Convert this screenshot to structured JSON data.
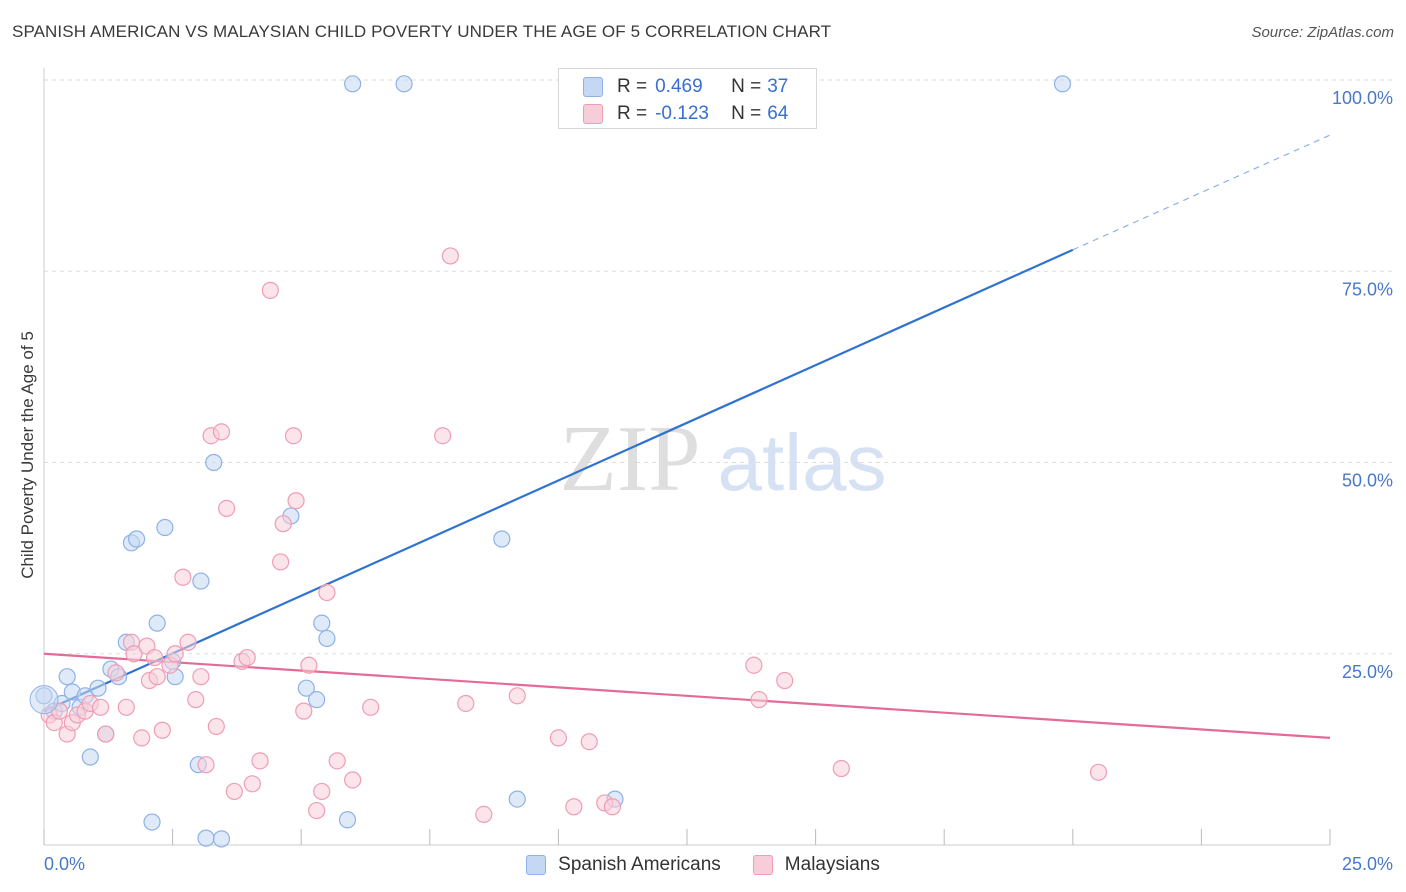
{
  "header": {
    "title": "SPANISH AMERICAN VS MALAYSIAN CHILD POVERTY UNDER THE AGE OF 5 CORRELATION CHART",
    "source": "Source: ZipAtlas.com"
  },
  "watermark": {
    "zip": "ZIP",
    "atlas": "atlas"
  },
  "legend": {
    "rows": [
      {
        "r_label": "R =",
        "r_value": "0.469",
        "n_label": "N =",
        "n_value": "37"
      },
      {
        "r_label": "R =",
        "r_value": "-0.123",
        "n_label": "N =",
        "n_value": "64"
      }
    ]
  },
  "bottom_legend": {
    "items": [
      "Spanish Americans",
      "Malaysians"
    ]
  },
  "colors": {
    "blue_fill": "#c5d8f3",
    "blue_stroke": "#8fb1e6",
    "blue_line": "#2f72d0",
    "pink_fill": "#f7cdd9",
    "pink_stroke": "#ef9db5",
    "pink_line": "#e26b98",
    "tick_text": "#4a78c8",
    "grid": "#dddddd"
  },
  "chart_data": {
    "type": "scatter",
    "title": "SPANISH AMERICAN VS MALAYSIAN CHILD POVERTY UNDER THE AGE OF 5 CORRELATION CHART",
    "ylabel": "Child Poverty Under the Age of 5",
    "xlabel": "",
    "xlim": [
      0,
      25
    ],
    "ylim": [
      0,
      100
    ],
    "x_tick_labels": [
      "0.0%",
      "25.0%"
    ],
    "y_tick_labels": [
      "100.0%",
      "75.0%",
      "50.0%",
      "25.0%"
    ],
    "y_ticks": [
      100,
      75,
      50,
      25
    ],
    "grid": true,
    "legend_position": "top-center",
    "series": [
      {
        "name": "Spanish Americans",
        "color": "#8fb1e6",
        "r": 0.469,
        "n": 37,
        "trend": {
          "x1": 0.0,
          "y1": 17.5,
          "x2": 20.0,
          "y2": 77.8,
          "dashed_to_x": 25.0,
          "dashed_to_y": 92.8
        },
        "points": [
          [
            0.0,
            19.5
          ],
          [
            0.2,
            17.5
          ],
          [
            0.35,
            18.5
          ],
          [
            0.45,
            22
          ],
          [
            0.55,
            20
          ],
          [
            0.7,
            18
          ],
          [
            0.8,
            19.5
          ],
          [
            0.9,
            11.5
          ],
          [
            1.05,
            20.5
          ],
          [
            1.2,
            14.5
          ],
          [
            1.3,
            23
          ],
          [
            1.45,
            22
          ],
          [
            1.7,
            39.5
          ],
          [
            1.8,
            40
          ],
          [
            2.1,
            3
          ],
          [
            2.2,
            29
          ],
          [
            2.35,
            41.5
          ],
          [
            2.5,
            24
          ],
          [
            2.55,
            22
          ],
          [
            3.0,
            10.5
          ],
          [
            3.05,
            34.5
          ],
          [
            3.15,
            0.9
          ],
          [
            3.3,
            50
          ],
          [
            3.45,
            0.8
          ],
          [
            4.8,
            43
          ],
          [
            5.1,
            20.5
          ],
          [
            5.3,
            19
          ],
          [
            5.4,
            29
          ],
          [
            5.5,
            27
          ],
          [
            5.9,
            3.3
          ],
          [
            6.0,
            99.5
          ],
          [
            7.0,
            99.5
          ],
          [
            8.9,
            40
          ],
          [
            9.2,
            6
          ],
          [
            11.1,
            6
          ],
          [
            19.8,
            99.5
          ],
          [
            1.6,
            26.5
          ]
        ]
      },
      {
        "name": "Malaysians",
        "color": "#ef9db5",
        "r": -0.123,
        "n": 64,
        "trend": {
          "x1": 0.0,
          "y1": 25.0,
          "x2": 25.0,
          "y2": 14.0
        },
        "points": [
          [
            0.1,
            17
          ],
          [
            0.2,
            16
          ],
          [
            0.3,
            17.5
          ],
          [
            0.45,
            14.5
          ],
          [
            0.55,
            16
          ],
          [
            0.65,
            17
          ],
          [
            0.8,
            17.5
          ],
          [
            0.9,
            18.5
          ],
          [
            1.1,
            18
          ],
          [
            1.2,
            14.5
          ],
          [
            1.4,
            22.5
          ],
          [
            1.6,
            18
          ],
          [
            1.7,
            26.5
          ],
          [
            1.75,
            25
          ],
          [
            1.9,
            14
          ],
          [
            2.0,
            26
          ],
          [
            2.05,
            21.5
          ],
          [
            2.15,
            24.5
          ],
          [
            2.2,
            22
          ],
          [
            2.3,
            15
          ],
          [
            2.45,
            23.5
          ],
          [
            2.55,
            25
          ],
          [
            2.7,
            35
          ],
          [
            2.8,
            26.5
          ],
          [
            2.95,
            19
          ],
          [
            3.05,
            22
          ],
          [
            3.15,
            10.5
          ],
          [
            3.25,
            53.5
          ],
          [
            3.35,
            15.5
          ],
          [
            3.45,
            54
          ],
          [
            3.55,
            44
          ],
          [
            3.7,
            7
          ],
          [
            3.85,
            24
          ],
          [
            3.95,
            24.5
          ],
          [
            4.05,
            8
          ],
          [
            4.2,
            11
          ],
          [
            4.4,
            72.5
          ],
          [
            4.6,
            37
          ],
          [
            4.65,
            42
          ],
          [
            4.85,
            53.5
          ],
          [
            4.9,
            45
          ],
          [
            5.05,
            17.5
          ],
          [
            5.15,
            23.5
          ],
          [
            5.3,
            4.5
          ],
          [
            5.4,
            7
          ],
          [
            5.5,
            33
          ],
          [
            5.7,
            11
          ],
          [
            6.0,
            8.5
          ],
          [
            6.35,
            18
          ],
          [
            7.75,
            53.5
          ],
          [
            7.9,
            77
          ],
          [
            8.2,
            18.5
          ],
          [
            8.55,
            4
          ],
          [
            9.2,
            19.5
          ],
          [
            10.0,
            14
          ],
          [
            10.3,
            5
          ],
          [
            10.6,
            13.5
          ],
          [
            10.9,
            5.5
          ],
          [
            11.05,
            5
          ],
          [
            13.8,
            23.5
          ],
          [
            13.9,
            19
          ],
          [
            14.4,
            21.5
          ],
          [
            15.5,
            10
          ],
          [
            20.5,
            9.5
          ]
        ]
      }
    ]
  }
}
